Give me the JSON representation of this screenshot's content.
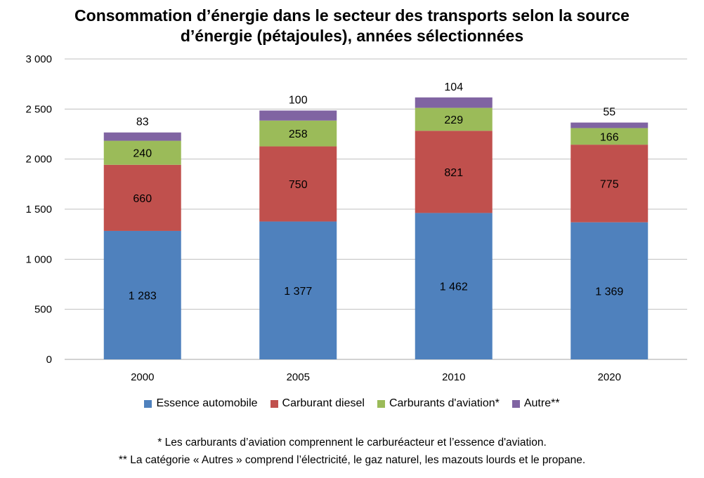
{
  "chart_data": {
    "type": "bar",
    "stacked": true,
    "title_lines": [
      "Consommation  d’énergie dans le secteur des transports selon la source",
      "d’énergie (pétajoules), années sélectionnées"
    ],
    "categories": [
      "2000",
      "2005",
      "2010",
      "2020"
    ],
    "series": [
      {
        "name": "Essence automobile",
        "color": "#4F81BD",
        "values": [
          1283,
          1377,
          1462,
          1369
        ],
        "labels": [
          "1 283",
          "1 377",
          "1 462",
          "1 369"
        ]
      },
      {
        "name": "Carburant diesel",
        "color": "#C0504D",
        "values": [
          660,
          750,
          821,
          775
        ],
        "labels": [
          "660",
          "750",
          "821",
          "775"
        ]
      },
      {
        "name": "Carburants d'aviation*",
        "color": "#9BBB59",
        "values": [
          240,
          258,
          229,
          166
        ],
        "labels": [
          "240",
          "258",
          "229",
          "166"
        ]
      },
      {
        "name": "Autre**",
        "color": "#8064A2",
        "values": [
          83,
          100,
          104,
          55
        ],
        "labels": [
          "83",
          "100",
          "104",
          "55"
        ]
      }
    ],
    "ylim": [
      0,
      3000
    ],
    "yticks": [
      0,
      500,
      1000,
      1500,
      2000,
      2500,
      3000
    ],
    "ytick_labels": [
      "0",
      "500",
      "1 000",
      "1 500",
      "2 000",
      "2 500",
      "3 000"
    ],
    "grid": true,
    "legend_position": "bottom",
    "gridline_color": "#BFBFBF"
  },
  "footnotes": [
    "* Les carburants d’aviation comprennent le carburéacteur et l’essence d'aviation.",
    "** La catégorie « Autres » comprend l’électricité,  le gaz naturel, les mazouts lourds et le propane."
  ]
}
